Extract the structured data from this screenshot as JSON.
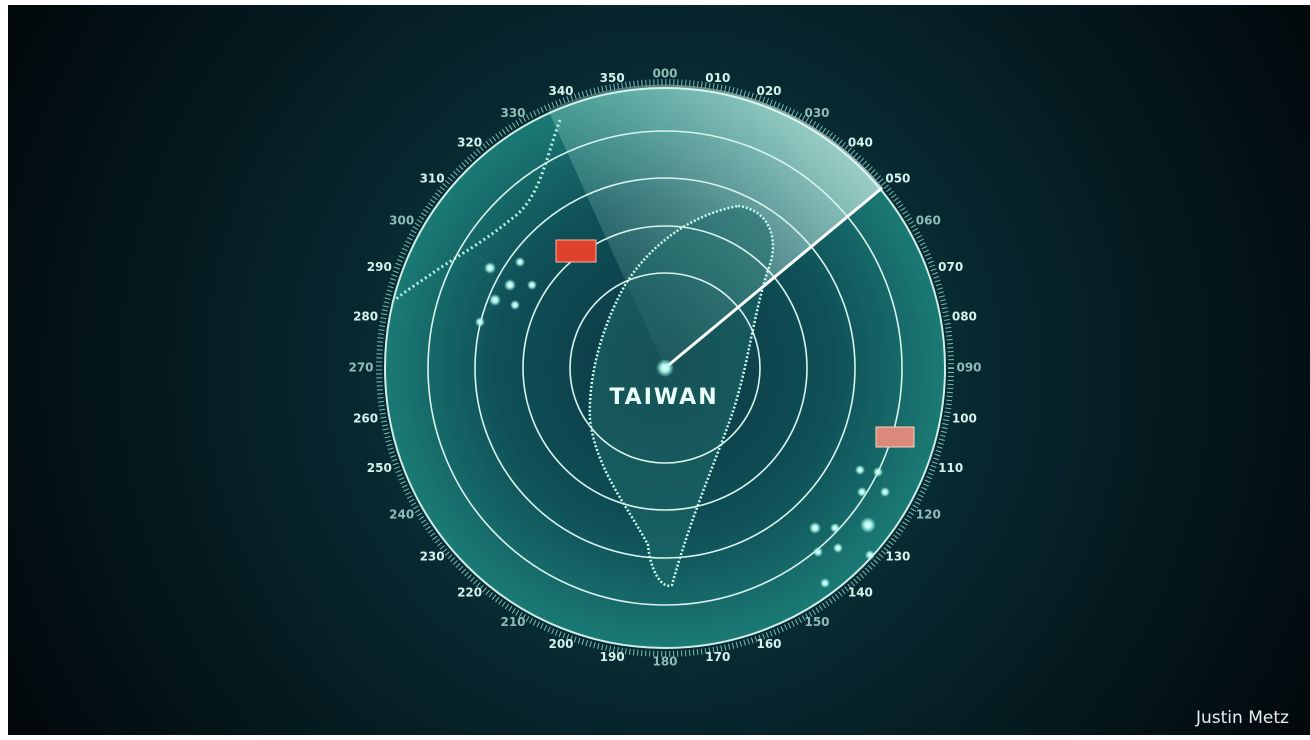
{
  "radar": {
    "bearings": [
      "000",
      "010",
      "020",
      "030",
      "040",
      "050",
      "060",
      "070",
      "080",
      "090",
      "100",
      "110",
      "120",
      "130",
      "140",
      "150",
      "160",
      "170",
      "180",
      "190",
      "200",
      "210",
      "220",
      "230",
      "240",
      "250",
      "260",
      "270",
      "280",
      "290",
      "300",
      "310",
      "320",
      "330",
      "340",
      "350"
    ],
    "label": "TAIWAN"
  },
  "credit": "Justin Metz"
}
